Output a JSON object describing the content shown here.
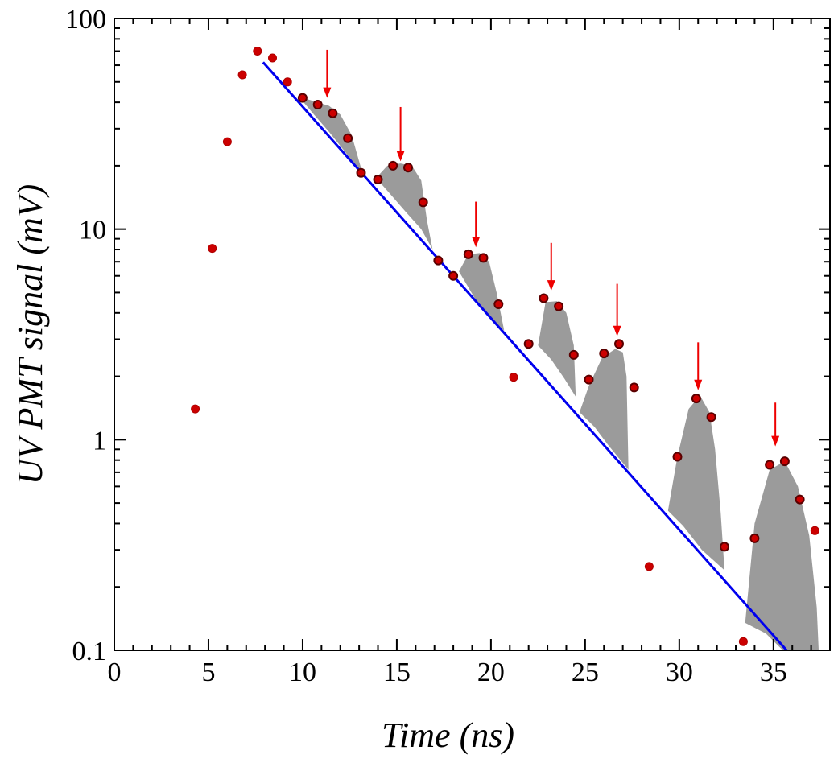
{
  "chart_data": {
    "type": "scatter",
    "title": "",
    "xlabel": "Time (ns)",
    "ylabel": "UV PMT signal (mV)",
    "xlim": [
      0,
      38
    ],
    "ylim": [
      0.1,
      100
    ],
    "yscale": "log",
    "x_ticks": [
      0,
      5,
      10,
      15,
      20,
      25,
      30,
      35
    ],
    "x_tick_labels": [
      "0",
      "5",
      "10",
      "15",
      "20",
      "25",
      "30",
      "35"
    ],
    "y_ticks": [
      0.1,
      1,
      10,
      100
    ],
    "y_tick_labels": [
      "0.1",
      "1",
      "10",
      "100"
    ],
    "grid": false,
    "colors": {
      "points": "#cc0000",
      "points_on_bumps": "#8b0000",
      "fit_line": "#0000ee",
      "fill": "#9b9b9b",
      "arrows": "#ee0000"
    },
    "series": [
      {
        "kind": "points",
        "points": [
          [
            4.3,
            1.4
          ],
          [
            5.2,
            8.1
          ],
          [
            6.0,
            26
          ],
          [
            6.8,
            54
          ],
          [
            7.6,
            70
          ],
          [
            8.4,
            65
          ],
          [
            9.2,
            50
          ],
          [
            10.0,
            42
          ],
          [
            10.8,
            39
          ],
          [
            11.6,
            35.5
          ],
          [
            12.4,
            27
          ],
          [
            13.1,
            18.5
          ],
          [
            14.0,
            17.2
          ],
          [
            14.8,
            20
          ],
          [
            15.6,
            19.6
          ],
          [
            16.4,
            13.4
          ],
          [
            17.2,
            7.1
          ],
          [
            18.0,
            6.0
          ],
          [
            18.8,
            7.6
          ],
          [
            19.6,
            7.3
          ],
          [
            20.4,
            4.4
          ],
          [
            21.2,
            1.98
          ],
          [
            22.0,
            2.85
          ],
          [
            22.8,
            4.7
          ],
          [
            23.6,
            4.3
          ],
          [
            24.4,
            2.53
          ],
          [
            25.2,
            1.93
          ],
          [
            26.0,
            2.57
          ],
          [
            26.8,
            2.85
          ],
          [
            27.6,
            1.77
          ],
          [
            28.4,
            0.25
          ],
          [
            29.9,
            0.83
          ],
          [
            30.9,
            1.57
          ],
          [
            31.7,
            1.28
          ],
          [
            32.4,
            0.31
          ],
          [
            33.4,
            0.11
          ],
          [
            34.0,
            0.34
          ],
          [
            34.8,
            0.76
          ],
          [
            35.6,
            0.79
          ],
          [
            36.4,
            0.52
          ],
          [
            37.2,
            0.37
          ]
        ]
      },
      {
        "kind": "fit_line",
        "points": [
          [
            7.9,
            62
          ],
          [
            35.7,
            0.1
          ]
        ]
      }
    ],
    "arrows": [
      {
        "x": 11.3,
        "y_from": 71,
        "y_to": 42
      },
      {
        "x": 15.2,
        "y_from": 38,
        "y_to": 21
      },
      {
        "x": 19.2,
        "y_from": 13.5,
        "y_to": 8.2
      },
      {
        "x": 23.2,
        "y_from": 8.6,
        "y_to": 5.1
      },
      {
        "x": 26.7,
        "y_from": 5.5,
        "y_to": 3.1
      },
      {
        "x": 31.0,
        "y_from": 2.9,
        "y_to": 1.72
      },
      {
        "x": 35.1,
        "y_from": 1.5,
        "y_to": 0.93
      }
    ],
    "shaded_regions": [
      [
        [
          9.8,
          42.5
        ],
        [
          10.6,
          40.5
        ],
        [
          11.4,
          38.5
        ],
        [
          12.0,
          35
        ],
        [
          12.6,
          28
        ],
        [
          13.1,
          19.5
        ],
        [
          13.1,
          18.5
        ],
        [
          12.3,
          23
        ],
        [
          11.4,
          29
        ],
        [
          10.6,
          35
        ],
        [
          9.8,
          42.5
        ]
      ],
      [
        [
          13.9,
          17.5
        ],
        [
          14.5,
          20
        ],
        [
          15.2,
          20.5
        ],
        [
          15.8,
          20
        ],
        [
          16.3,
          17
        ],
        [
          16.6,
          11
        ],
        [
          16.9,
          8
        ],
        [
          16.3,
          10
        ],
        [
          15.5,
          12
        ],
        [
          14.7,
          14.5
        ],
        [
          13.9,
          17.5
        ]
      ],
      [
        [
          18.3,
          6.3
        ],
        [
          18.8,
          7.6
        ],
        [
          19.4,
          7.7
        ],
        [
          19.9,
          7.0
        ],
        [
          20.3,
          5.0
        ],
        [
          20.7,
          3.3
        ],
        [
          20.0,
          3.8
        ],
        [
          19.2,
          4.6
        ],
        [
          18.3,
          6.3
        ]
      ],
      [
        [
          22.5,
          2.8
        ],
        [
          22.9,
          4.5
        ],
        [
          23.5,
          4.55
        ],
        [
          24.0,
          4.0
        ],
        [
          24.4,
          2.8
        ],
        [
          24.5,
          1.6
        ],
        [
          23.9,
          1.95
        ],
        [
          23.2,
          2.4
        ],
        [
          22.5,
          2.8
        ]
      ],
      [
        [
          24.7,
          1.35
        ],
        [
          25.2,
          1.8
        ],
        [
          25.9,
          2.45
        ],
        [
          26.6,
          2.7
        ],
        [
          27.0,
          2.6
        ],
        [
          27.2,
          2.0
        ],
        [
          27.3,
          0.72
        ],
        [
          26.2,
          0.95
        ],
        [
          25.5,
          1.15
        ],
        [
          24.7,
          1.35
        ]
      ],
      [
        [
          29.4,
          0.46
        ],
        [
          29.9,
          0.83
        ],
        [
          30.5,
          1.4
        ],
        [
          31.1,
          1.62
        ],
        [
          31.6,
          1.35
        ],
        [
          31.9,
          0.9
        ],
        [
          32.2,
          0.45
        ],
        [
          32.4,
          0.24
        ],
        [
          31.2,
          0.3
        ],
        [
          30.2,
          0.39
        ],
        [
          29.4,
          0.46
        ]
      ],
      [
        [
          33.5,
          0.135
        ],
        [
          34.0,
          0.4
        ],
        [
          34.8,
          0.72
        ],
        [
          35.6,
          0.79
        ],
        [
          36.3,
          0.6
        ],
        [
          36.9,
          0.35
        ],
        [
          37.3,
          0.16
        ],
        [
          37.4,
          0.1
        ],
        [
          35.5,
          0.1
        ],
        [
          34.6,
          0.12
        ],
        [
          33.5,
          0.135
        ]
      ]
    ]
  }
}
